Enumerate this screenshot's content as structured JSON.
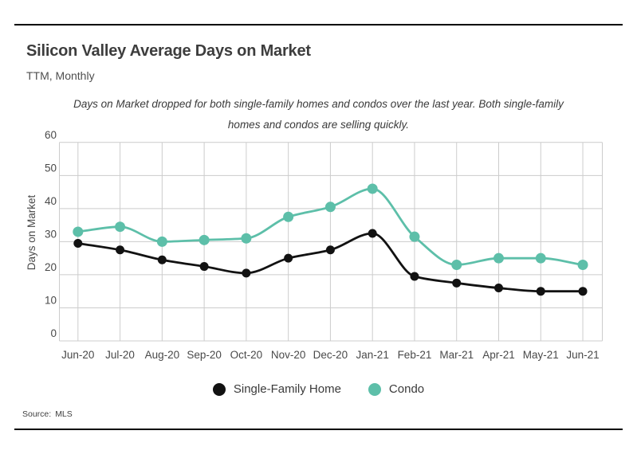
{
  "style": {
    "grid_color": "#cccccc",
    "rule_color": "#000000",
    "accent_teal": "#5dbfa9",
    "series_black": "#121212"
  },
  "footer": {
    "source_label": "Source:",
    "source_value": "MLS"
  },
  "chart_data": {
    "type": "line",
    "title": "Silicon Valley Average Days on Market",
    "subtitle": "TTM, Monthly",
    "annotation": "Days on Market dropped for both single-family homes and condos over the last year. Both single-family homes and condos are selling quickly.",
    "xlabel": "",
    "ylabel": "Days on Market",
    "ylim": [
      0,
      60
    ],
    "ytick_step": 10,
    "yticks": [
      0,
      10,
      20,
      30,
      40,
      50,
      60
    ],
    "grid": true,
    "legend_position": "bottom",
    "categories": [
      "Jun-20",
      "Jul-20",
      "Aug-20",
      "Sep-20",
      "Oct-20",
      "Nov-20",
      "Dec-20",
      "Jan-21",
      "Feb-21",
      "Mar-21",
      "Apr-21",
      "May-21",
      "Jun-21"
    ],
    "series": [
      {
        "name": "Single-Family Home",
        "color": "#121212",
        "values": [
          29.5,
          27.5,
          24.5,
          22.5,
          20.5,
          25,
          27.5,
          32.5,
          19.5,
          17.5,
          16,
          15,
          15
        ]
      },
      {
        "name": "Condo",
        "color": "#5dbfa9",
        "values": [
          33,
          34.5,
          30,
          30.5,
          31,
          37.5,
          40.5,
          46,
          31.5,
          23,
          25,
          25,
          23
        ]
      }
    ]
  }
}
